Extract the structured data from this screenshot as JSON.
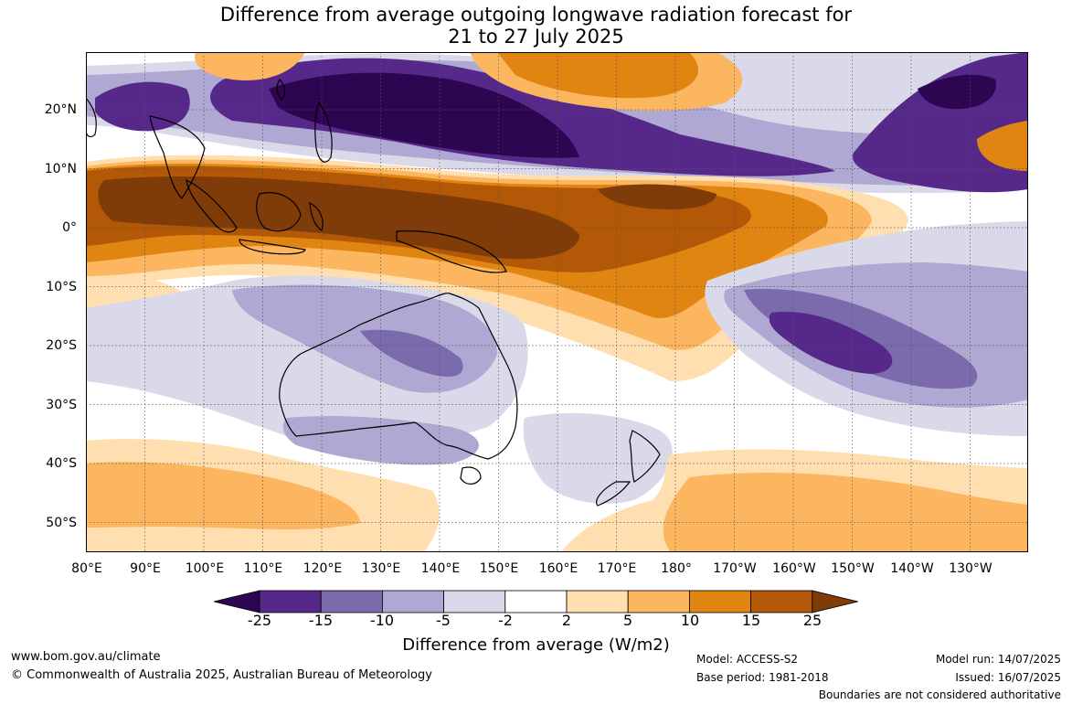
{
  "title": {
    "line1": "Difference from average outgoing longwave radiation forecast for",
    "line2": "21 to 27 July 2025"
  },
  "map": {
    "lat_labels": [
      "20°N",
      "10°N",
      "0°",
      "10°S",
      "20°S",
      "30°S",
      "40°S",
      "50°S"
    ],
    "lon_labels": [
      "80°E",
      "90°E",
      "100°E",
      "110°E",
      "120°E",
      "130°E",
      "140°E",
      "150°E",
      "160°E",
      "170°E",
      "180°",
      "170°W",
      "160°W",
      "150°W",
      "140°W",
      "130°W"
    ]
  },
  "legend": {
    "label": "Difference from average (W/m2)",
    "ticks": [
      "-25",
      "-15",
      "-10",
      "-5",
      "-2",
      "2",
      "5",
      "10",
      "15",
      "25"
    ],
    "colors": [
      "#2d0651",
      "#552889",
      "#7b6bad",
      "#aea8d2",
      "#dad9ea",
      "#ffffff",
      "#ffdfb0",
      "#fdb660",
      "#e08412",
      "#b35806",
      "#7f3b08"
    ]
  },
  "footer": {
    "website": "www.bom.gov.au/climate",
    "copyright": "© Commonwealth of Australia 2025, Australian Bureau of Meteorology",
    "model": "Model: ACCESS-S2",
    "base_period": "Base period: 1981-2018",
    "model_run": "Model run: 14/07/2025",
    "issued": "Issued: 16/07/2025",
    "disclaimer": "Boundaries are not considered authoritative"
  }
}
